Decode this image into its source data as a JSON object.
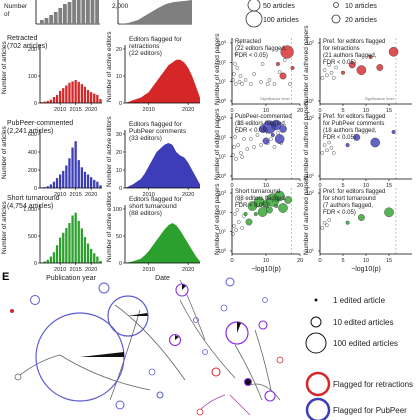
{
  "panel_e": {
    "label": "E",
    "legend_size": [
      "1 edited article",
      "10 edited articles",
      "100 edited articles"
    ],
    "legend_flag": [
      "Flagged for retractions",
      "Flagged for PubPeer"
    ]
  },
  "size_legend_top": [
    "50 articles",
    "100 articles",
    "10 articles",
    "20 articles"
  ],
  "colors": {
    "gray": "#7f7f7f",
    "red": "#d62728",
    "blue": "#3d3db8",
    "green": "#2ca02c",
    "purple": "#8a2be2"
  },
  "chart_data": [
    {
      "type": "bar",
      "panel": "articles-retracted",
      "series_label": "Retracted",
      "count_label": "(702 articles)",
      "ylabel": "Number of articles",
      "ylim": [
        0,
        200
      ],
      "yticks": [
        "0",
        "100",
        "200"
      ],
      "xticks": [
        "2010",
        "2015",
        "2020"
      ],
      "categories": [
        "2004",
        "2005",
        "2006",
        "2007",
        "2008",
        "2009",
        "2010",
        "2011",
        "2012",
        "2013",
        "2014",
        "2015",
        "2016",
        "2017",
        "2018",
        "2019",
        "2020",
        "2021",
        "2022",
        "2023"
      ],
      "values": [
        3,
        5,
        8,
        12,
        22,
        30,
        45,
        55,
        65,
        75,
        80,
        85,
        78,
        70,
        60,
        48,
        40,
        35,
        30,
        15
      ],
      "color": "#d62728"
    },
    {
      "type": "bar",
      "panel": "articles-pubpeer",
      "series_label": "PubPeer-commented",
      "count_label": "(2,241 articles)",
      "ylabel": "Number of articles",
      "ylim": [
        0,
        600
      ],
      "yticks": [
        "0",
        "200",
        "400",
        "600"
      ],
      "xticks": [
        "2010",
        "2015",
        "2020"
      ],
      "categories": [
        "2004",
        "2005",
        "2006",
        "2007",
        "2008",
        "2009",
        "2010",
        "2011",
        "2012",
        "2013",
        "2014",
        "2015",
        "2016",
        "2017",
        "2018",
        "2019",
        "2020",
        "2021",
        "2022",
        "2023"
      ],
      "values": [
        5,
        10,
        20,
        40,
        70,
        110,
        150,
        190,
        250,
        330,
        450,
        520,
        310,
        230,
        180,
        150,
        120,
        90,
        70,
        30
      ],
      "color": "#3d3db8"
    },
    {
      "type": "bar",
      "panel": "articles-short-turnaround",
      "series_label": "Short turnaround",
      "count_label": "(4,754 articles)",
      "ylabel": "Number of articles",
      "xlabel": "Publication year",
      "ylim": [
        0,
        1000
      ],
      "yticks": [
        "0",
        "500",
        "1,000"
      ],
      "xticks": [
        "2010",
        "2015",
        "2020"
      ],
      "categories": [
        "2004",
        "2005",
        "2006",
        "2007",
        "2008",
        "2009",
        "2010",
        "2011",
        "2012",
        "2013",
        "2014",
        "2015",
        "2016",
        "2017",
        "2018",
        "2019",
        "2020",
        "2021",
        "2022",
        "2023"
      ],
      "values": [
        10,
        30,
        60,
        120,
        200,
        330,
        470,
        560,
        650,
        740,
        880,
        930,
        780,
        640,
        480,
        360,
        260,
        180,
        120,
        40
      ],
      "color": "#2ca02c"
    },
    {
      "type": "area",
      "panel": "editors-retractions",
      "series_label": "Editors flagged for retractions",
      "count_label": "(22 editors)",
      "ylabel": "Number of active editors",
      "ylim": [
        0,
        20
      ],
      "yticks": [
        "0",
        "10",
        "20"
      ],
      "xticks": [
        "2010",
        "2020"
      ],
      "xlim": [
        2004,
        2023
      ],
      "x": [
        2004,
        2006,
        2008,
        2009,
        2010,
        2011,
        2012,
        2013,
        2014,
        2015,
        2016,
        2017,
        2018,
        2019,
        2020,
        2021,
        2022,
        2023
      ],
      "y": [
        0,
        1,
        2,
        3,
        4,
        6,
        8,
        10,
        12,
        14,
        15,
        16,
        16,
        15,
        13,
        10,
        6,
        2
      ],
      "color": "#d62728"
    },
    {
      "type": "area",
      "panel": "editors-pubpeer",
      "series_label": "Editors flagged for PubPeer comments",
      "count_label": "(33 editors)",
      "ylabel": "Number of active editors",
      "ylim": [
        0,
        30
      ],
      "yticks": [
        "0",
        "10",
        "20",
        "30"
      ],
      "xticks": [
        "2010",
        "2020"
      ],
      "xlim": [
        2004,
        2023
      ],
      "x": [
        2004,
        2006,
        2008,
        2009,
        2010,
        2011,
        2012,
        2013,
        2014,
        2015,
        2016,
        2017,
        2018,
        2019,
        2020,
        2021,
        2022,
        2023
      ],
      "y": [
        0,
        2,
        5,
        8,
        12,
        16,
        20,
        22,
        24,
        25,
        24,
        20,
        18,
        17,
        14,
        10,
        6,
        2
      ],
      "color": "#3d3db8"
    },
    {
      "type": "area",
      "panel": "editors-short-turnaround",
      "series_label": "Editors flagged for short turnaround",
      "count_label": "(88 editors)",
      "ylabel": "Number of active editors",
      "xlabel": "Date",
      "ylim": [
        0,
        100
      ],
      "yticks": [
        "0",
        "50",
        "100"
      ],
      "xticks": [
        "2010",
        "2020"
      ],
      "xlim": [
        2004,
        2023
      ],
      "x": [
        2004,
        2006,
        2008,
        2009,
        2010,
        2011,
        2012,
        2013,
        2014,
        2015,
        2016,
        2017,
        2018,
        2019,
        2020,
        2021,
        2022,
        2023
      ],
      "y": [
        0,
        3,
        8,
        14,
        22,
        32,
        42,
        52,
        62,
        70,
        74,
        70,
        60,
        48,
        36,
        24,
        12,
        3
      ],
      "color": "#2ca02c"
    },
    {
      "type": "scatter",
      "panel": "edited-retracted",
      "text": [
        "Retracted",
        "(22 editors flagged,",
        "FDR < 0.05)"
      ],
      "ylabel": "Number of edited papers",
      "xlim": [
        0,
        20
      ],
      "xticks": [
        "0",
        "10",
        "20"
      ],
      "yticks": [
        "10^0",
        "10^1",
        "10^2",
        "10^3"
      ],
      "threshold_label": "Significance level",
      "color": "#d62728",
      "points": [
        [
          0.3,
          1.2
        ],
        [
          0.6,
          1.5
        ],
        [
          0.9,
          2.0
        ],
        [
          1.1,
          1.0
        ],
        [
          1.3,
          2.5
        ],
        [
          1.6,
          1.8
        ],
        [
          2.0,
          3.0
        ],
        [
          2.2,
          1.1
        ],
        [
          2.5,
          1.4
        ],
        [
          3.0,
          1.0
        ],
        [
          4.0,
          1.2
        ],
        [
          5.5,
          1.0
        ],
        [
          6.5,
          1.5
        ],
        [
          8.5,
          1.1
        ],
        [
          9.0,
          2.0
        ],
        [
          10.5,
          1.0
        ],
        [
          11.0,
          1.2
        ],
        [
          12.5,
          1.0
        ],
        [
          14.0,
          1.6
        ],
        [
          15.5,
          2.2
        ],
        [
          17.0,
          1.0
        ]
      ],
      "flagged": [
        [
          13.5,
          2.0
        ],
        [
          15.0,
          1.4
        ],
        [
          16.2,
          2.6
        ],
        [
          17.8,
          1.8
        ]
      ]
    },
    {
      "type": "scatter",
      "panel": "edited-pubpeer",
      "text": [
        "PubPeer-commented",
        "(33 editors flagged,",
        "FDR < 0.05)"
      ],
      "ylabel": "Number of edited papers",
      "xlim": [
        0,
        20
      ],
      "xticks": [
        "0",
        "10",
        "20"
      ],
      "yticks": [
        "10^0",
        "10^1",
        "10^2",
        "10^3"
      ],
      "color": "#3d3db8",
      "points": [
        [
          0.3,
          1.2
        ],
        [
          0.6,
          1.6
        ],
        [
          0.9,
          2.1
        ],
        [
          1.2,
          1.0
        ],
        [
          1.5,
          2.4
        ],
        [
          1.8,
          1.7
        ],
        [
          2.2,
          2.8
        ],
        [
          2.6,
          1.3
        ],
        [
          3.0,
          1.1
        ],
        [
          3.5,
          2.0
        ],
        [
          4.5,
          1.5
        ],
        [
          5.5,
          2.0
        ],
        [
          6.5,
          1.6
        ],
        [
          7.5,
          2.2
        ],
        [
          8.5,
          1.7
        ],
        [
          9.5,
          2.4
        ],
        [
          10.5,
          1.8
        ],
        [
          11.5,
          2.0
        ],
        [
          12.5,
          1.6
        ],
        [
          13.5,
          2.3
        ],
        [
          14.5,
          1.8
        ]
      ],
      "flagged": [
        [
          9.0,
          2.5
        ],
        [
          10.0,
          1.9
        ],
        [
          11.0,
          2.6
        ],
        [
          12.0,
          2.2
        ],
        [
          13.0,
          2.7
        ],
        [
          14.0,
          2.0
        ],
        [
          15.0,
          2.5
        ]
      ]
    },
    {
      "type": "scatter",
      "panel": "edited-short-turnaround",
      "text": [
        "Short turnaround",
        "(88 editors flagged,",
        "FDR < 0.05)"
      ],
      "ylabel": "Number of edited papers",
      "xlabel": "−log10(p)",
      "xlim": [
        0,
        20
      ],
      "xticks": [
        "0",
        "10",
        "20"
      ],
      "yticks": [
        "10^0",
        "10^1",
        "10^2",
        "10^3"
      ],
      "color": "#2ca02c",
      "points": [
        [
          0.3,
          1.0
        ],
        [
          0.6,
          1.4
        ],
        [
          0.9,
          2.0
        ],
        [
          1.2,
          1.2
        ],
        [
          1.6,
          2.2
        ],
        [
          2.0,
          1.6
        ],
        [
          2.4,
          2.6
        ],
        [
          3.0,
          1.3
        ],
        [
          3.5,
          1.9
        ]
      ],
      "flagged": [
        [
          4.0,
          2.0
        ],
        [
          5.0,
          1.6
        ],
        [
          6.0,
          2.4
        ],
        [
          7.0,
          2.0
        ],
        [
          8.0,
          2.6
        ],
        [
          9.0,
          2.1
        ],
        [
          10.0,
          2.5
        ],
        [
          11.0,
          2.2
        ],
        [
          12.0,
          2.7
        ],
        [
          13.0,
          2.4
        ],
        [
          14.0,
          2.9
        ],
        [
          15.0,
          2.3
        ],
        [
          16.5,
          2.7
        ]
      ]
    },
    {
      "type": "scatter",
      "panel": "authored-retractions",
      "text": [
        "Pref. for editors flagged",
        "for retractions",
        "(21 authors flagged,",
        "FDR < 0.05)"
      ],
      "ylabel": "Number of authored papers",
      "xlim": [
        0,
        20
      ],
      "xticks": [
        "0",
        "5",
        "10",
        "15"
      ],
      "yticks": [
        "10^1",
        "10^2"
      ],
      "threshold_label": "Significance level",
      "color": "#d62728",
      "points": [
        [
          0.5,
          1.0
        ],
        [
          1.0,
          1.3
        ],
        [
          1.5,
          1.1
        ],
        [
          2.0,
          1.5
        ],
        [
          2.5,
          1.2
        ],
        [
          3.0,
          1.0
        ],
        [
          3.5,
          1.4
        ]
      ],
      "flagged": [
        [
          5.0,
          1.2
        ],
        [
          7.0,
          1.5
        ],
        [
          9.0,
          1.3
        ],
        [
          11.0,
          1.8
        ],
        [
          13.0,
          1.4
        ],
        [
          16.0,
          2.0
        ]
      ]
    },
    {
      "type": "scatter",
      "panel": "authored-pubpeer",
      "text": [
        "Pref. for editors flagged",
        "for PubPeer comments",
        "(18 authors flagged,",
        "FDR < 0.05)"
      ],
      "ylabel": "Number of authored papers",
      "xlim": [
        0,
        20
      ],
      "xticks": [
        "0",
        "5",
        "10",
        "15"
      ],
      "yticks": [
        "10^1",
        "10^2"
      ],
      "color": "#3d3db8",
      "points": [
        [
          0.5,
          1.0
        ],
        [
          1.0,
          1.3
        ],
        [
          1.5,
          1.1
        ],
        [
          2.0,
          1.4
        ],
        [
          2.5,
          1.2
        ],
        [
          3.0,
          1.0
        ]
      ],
      "flagged": [
        [
          6.0,
          1.3
        ],
        [
          8.0,
          1.6
        ],
        [
          12.0,
          1.4
        ],
        [
          16.0,
          1.8
        ]
      ]
    },
    {
      "type": "scatter",
      "panel": "authored-short-turnaround",
      "text": [
        "Pref. for editors flagged",
        "for short turnaround",
        "(7 authors flagged,",
        "FDR < 0.05)"
      ],
      "ylabel": "Number of authored papers",
      "xlabel": "−log10(p)",
      "xlim": [
        0,
        20
      ],
      "xticks": [
        "0",
        "5",
        "10",
        "15"
      ],
      "yticks": [
        "10^1",
        "10^2"
      ],
      "color": "#2ca02c",
      "points": [
        [
          0.5,
          1.0
        ],
        [
          1.0,
          1.2
        ],
        [
          1.5,
          1.1
        ],
        [
          2.0,
          1.3
        ]
      ],
      "flagged": [
        [
          6.0,
          1.2
        ],
        [
          9.0,
          1.4
        ],
        [
          15.0,
          1.6
        ]
      ]
    }
  ]
}
